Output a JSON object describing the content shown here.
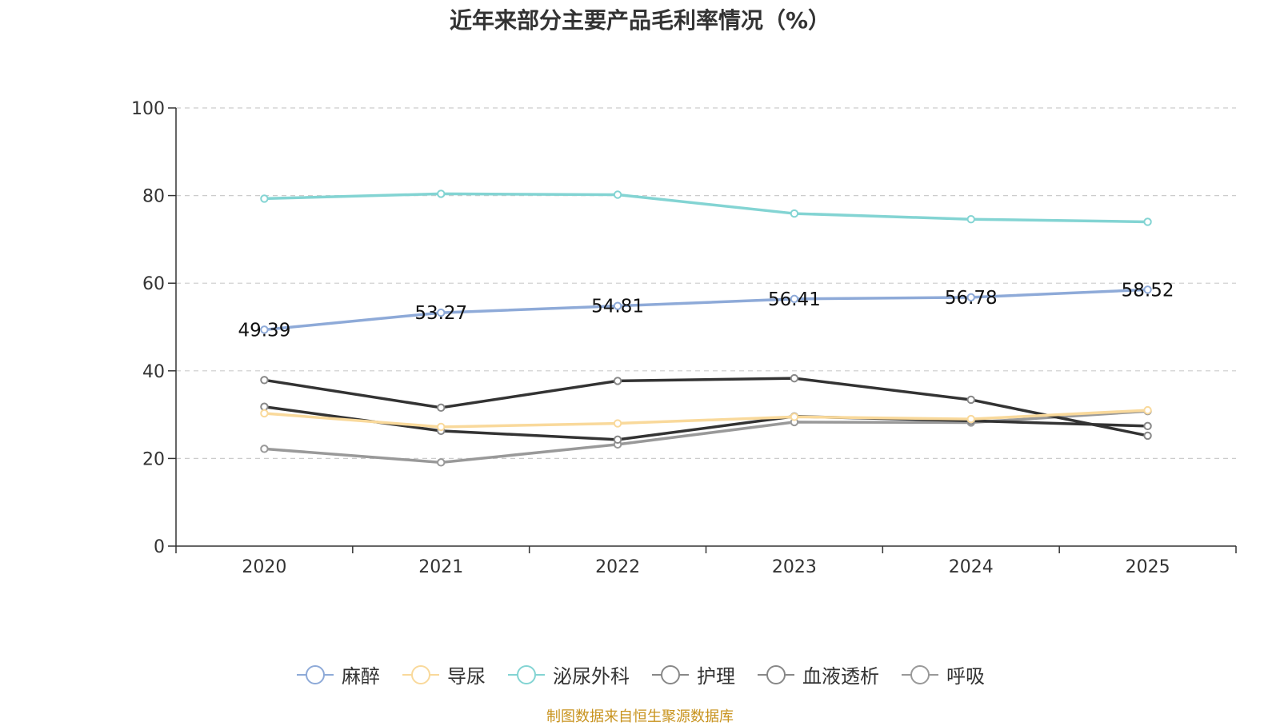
{
  "chart_data": {
    "type": "line",
    "title": "近年来部分主要产品毛利率情况（%）",
    "categories": [
      "2020",
      "2021",
      "2022",
      "2023",
      "2024",
      "2025"
    ],
    "ylim": [
      0,
      100
    ],
    "yticks": [
      0,
      20,
      40,
      60,
      80,
      100
    ],
    "grid": true,
    "legend_position": "bottom",
    "series": [
      {
        "name": "麻醉",
        "color": "#8eaad8",
        "values": [
          49.39,
          53.27,
          54.81,
          56.41,
          56.78,
          58.52
        ],
        "labels": [
          "49.39",
          "53.27",
          "54.81",
          "56.41",
          "56.78",
          "58.52"
        ]
      },
      {
        "name": "导尿",
        "color": "#f9d99b",
        "values": [
          30.3,
          27.2,
          28.0,
          29.5,
          29.0,
          31.0
        ]
      },
      {
        "name": "泌尿外科",
        "color": "#83d4d3",
        "values": [
          79.3,
          80.4,
          80.2,
          75.9,
          74.6,
          74.0
        ]
      },
      {
        "name": "护理",
        "color": "#333333",
        "values": [
          37.9,
          31.6,
          37.7,
          38.3,
          33.4,
          25.2
        ]
      },
      {
        "name": "血液透析",
        "color": "#333333",
        "values": [
          31.8,
          26.3,
          24.3,
          29.6,
          28.6,
          27.4
        ]
      },
      {
        "name": "呼吸",
        "color": "#999999",
        "values": [
          22.2,
          19.1,
          23.2,
          28.3,
          28.2,
          30.8
        ]
      }
    ]
  },
  "source": "制图数据来自恒生聚源数据库"
}
